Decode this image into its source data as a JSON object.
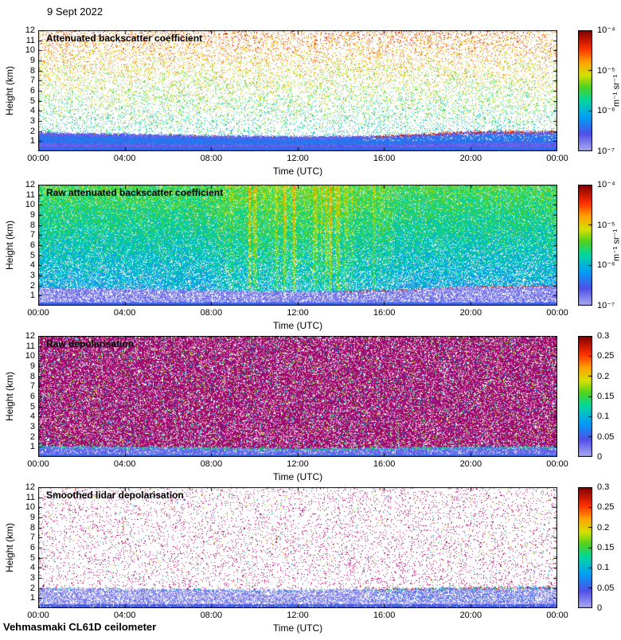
{
  "date_label": "9 Sept 2022",
  "footer": "Vehmasmaki CL61D ceilometer",
  "xlabel": "Time (UTC)",
  "ylabel": "Height (km)",
  "x_ticks": [
    "00:00",
    "04:00",
    "08:00",
    "12:00",
    "16:00",
    "20:00",
    "00:00"
  ],
  "y_ticks": [
    1,
    2,
    3,
    4,
    5,
    6,
    7,
    8,
    9,
    10,
    11,
    12
  ],
  "colormap": [
    [
      0,
      "#aaaaf0"
    ],
    [
      0.14,
      "#5050e8"
    ],
    [
      0.28,
      "#00a0f5"
    ],
    [
      0.42,
      "#00d7a0"
    ],
    [
      0.53,
      "#50d220"
    ],
    [
      0.63,
      "#d7e100"
    ],
    [
      0.74,
      "#ffa000"
    ],
    [
      0.85,
      "#ff3000"
    ],
    [
      1,
      "#7f0000"
    ]
  ],
  "chart_data": [
    {
      "type": "heatmap",
      "title": "Attenuated backscatter coefficient",
      "xlabel": "Time (UTC)",
      "ylabel": "Height (km)",
      "x_range_hours": [
        0,
        24
      ],
      "y_range_km": [
        0,
        12
      ],
      "colorbar": {
        "scale": "log",
        "min_value": "1e-7",
        "max_value": "1e-4",
        "ticks": [
          "10⁻⁴",
          "10⁻⁵",
          "10⁻⁶",
          "10⁻⁷"
        ],
        "unit": "m⁻¹ sr⁻¹"
      },
      "description": "Sparse speckle noise above ~2 km, colour warming with height (green low, yellow/orange/red aloft); continuous blue boundary/aerosol layer below ~2 km with darker navy band ~1 km and a red-speckled layer top after ~15:30 UTC.",
      "render": {
        "style": "sparse_backscatter",
        "seed": 11,
        "layer_top_km": [
          1.9,
          1.75,
          1.6,
          1.5,
          1.6,
          2.0,
          2.05
        ],
        "red_cap_start_hour": 15.5
      }
    },
    {
      "type": "heatmap",
      "title": "Raw attenuated backscatter coefficient",
      "xlabel": "Time (UTC)",
      "ylabel": "Height (km)",
      "x_range_hours": [
        0,
        24
      ],
      "y_range_km": [
        0,
        12
      ],
      "colorbar": {
        "scale": "log",
        "min_value": "1e-7",
        "max_value": "1e-4",
        "ticks": [
          "10⁻⁴",
          "10⁻⁵",
          "10⁻⁶",
          "10⁻⁷"
        ],
        "unit": "m⁻¹ sr⁻¹"
      },
      "description": "Dense blue-green noise field over the whole profile; yellow/orange vertical daylight-noise streaks between ~08:00 and 16:00 UTC; pale blue boundary layer below ~1.8 km with dark red top edge after ~14:00 UTC.",
      "render": {
        "style": "dense_raw",
        "seed": 22,
        "layer_top_km": [
          1.8,
          1.7,
          1.55,
          1.45,
          1.55,
          1.95,
          2.0
        ],
        "day_window_hours": [
          7.5,
          16.5
        ],
        "red_cap_start_hour": 14.0
      }
    },
    {
      "type": "heatmap",
      "title": "Raw depolarisation",
      "xlabel": "Time (UTC)",
      "ylabel": "Height (km)",
      "x_range_hours": [
        0,
        24
      ],
      "y_range_km": [
        0,
        12
      ],
      "colorbar": {
        "scale": "linear",
        "min_value": "0",
        "max_value": "0.3",
        "ticks": [
          "0.3",
          "0.25",
          "0.2",
          "0.15",
          "0.1",
          "0.05",
          "0"
        ]
      },
      "description": "Dense magenta/maroon high-depolarisation noise over nearly the full profile with scattered cool-coloured dots; low-depolarisation blue band below ~1 km with green speckle at its top edge.",
      "render": {
        "style": "dense_depol",
        "seed": 33,
        "magenta": [
          150,
          10,
          110
        ],
        "white_gap": 0.16,
        "cool_dot": 0.1,
        "layer_top_km": [
          1.15,
          1.05,
          0.95,
          0.9,
          0.95,
          1.05,
          1.1
        ]
      }
    },
    {
      "type": "heatmap",
      "title": "Smoothed lidar depolarisation",
      "xlabel": "Time (UTC)",
      "ylabel": "Height (km)",
      "x_range_hours": [
        0,
        24
      ],
      "y_range_km": [
        0,
        12
      ],
      "colorbar": {
        "scale": "linear",
        "min_value": "0",
        "max_value": "0.3",
        "ticks": [
          "0.3",
          "0.25",
          "0.2",
          "0.15",
          "0.1",
          "0.05",
          "0"
        ]
      },
      "description": "Mostly white with sparse magenta noise dots; pale lavender-blue low-depolarisation layer below ~2 km, darker blue patches ~16:00–23:00 UTC and a mixed red/green/blue speckled layer top after ~15:30 UTC.",
      "render": {
        "style": "sparse_depol",
        "seed": 44,
        "magenta": [
          150,
          10,
          110
        ],
        "noise_density": 0.085,
        "layer_top_km": [
          2.05,
          1.95,
          1.9,
          1.85,
          1.95,
          2.1,
          2.15
        ],
        "band_start_hour": 15.5
      }
    }
  ]
}
